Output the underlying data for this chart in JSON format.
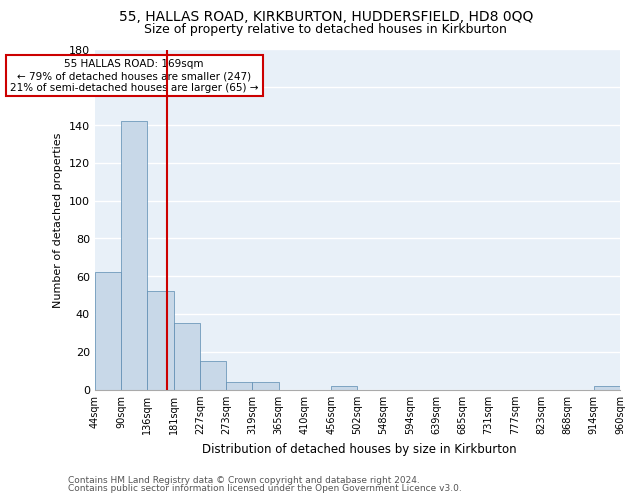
{
  "title1": "55, HALLAS ROAD, KIRKBURTON, HUDDERSFIELD, HD8 0QQ",
  "title2": "Size of property relative to detached houses in Kirkburton",
  "xlabel": "Distribution of detached houses by size in Kirkburton",
  "ylabel": "Number of detached properties",
  "footnote1": "Contains HM Land Registry data © Crown copyright and database right 2024.",
  "footnote2": "Contains public sector information licensed under the Open Government Licence v3.0.",
  "bin_labels": [
    "44sqm",
    "90sqm",
    "136sqm",
    "181sqm",
    "227sqm",
    "273sqm",
    "319sqm",
    "365sqm",
    "410sqm",
    "456sqm",
    "502sqm",
    "548sqm",
    "594sqm",
    "639sqm",
    "685sqm",
    "731sqm",
    "777sqm",
    "823sqm",
    "868sqm",
    "914sqm",
    "960sqm"
  ],
  "bar_heights": [
    62,
    142,
    52,
    35,
    15,
    4,
    4,
    0,
    0,
    2,
    0,
    0,
    0,
    0,
    0,
    0,
    0,
    0,
    0,
    2
  ],
  "bar_color": "#c8d8e8",
  "bar_edge_color": "#5a8ab0",
  "vline_color": "#cc0000",
  "annotation_text": "55 HALLAS ROAD: 169sqm\n← 79% of detached houses are smaller (247)\n21% of semi-detached houses are larger (65) →",
  "annotation_box_color": "white",
  "annotation_box_edge": "#cc0000",
  "ylim": [
    0,
    180
  ],
  "yticks": [
    0,
    20,
    40,
    60,
    80,
    100,
    120,
    140,
    160,
    180
  ],
  "bg_color": "#e8f0f8",
  "grid_color": "white",
  "title1_fontsize": 10,
  "title2_fontsize": 9,
  "xlabel_fontsize": 8.5,
  "ylabel_fontsize": 8,
  "footnote_fontsize": 6.5,
  "tick_fontsize": 7,
  "annot_fontsize": 7.5
}
